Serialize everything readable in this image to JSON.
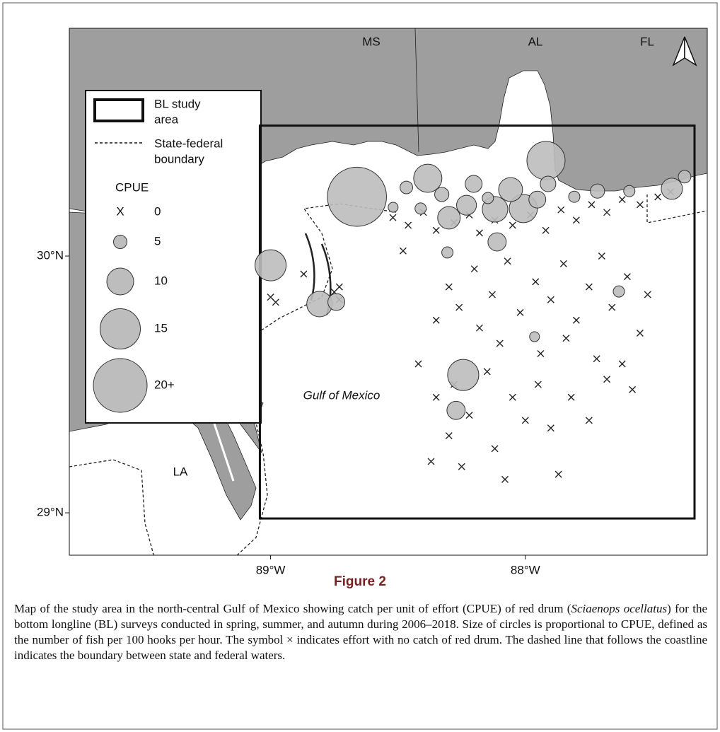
{
  "map_data": {
    "type": "bubble-map",
    "xlim": [
      -89.79,
      -87.286
    ],
    "ylim": [
      28.835,
      30.887
    ],
    "xticks": [
      {
        "value": -89,
        "label": "89°W"
      },
      {
        "value": -88,
        "label": "88°W"
      }
    ],
    "yticks": [
      {
        "value": 29,
        "label": "29°N"
      },
      {
        "value": 30,
        "label": "30°N"
      }
    ],
    "study_area": {
      "lon": [
        -89.042,
        -87.336
      ],
      "lat": [
        28.978,
        30.508
      ]
    },
    "catch": {
      "lon": [
        -88.661,
        -87.919,
        -89.0,
        -88.244,
        -88.383,
        -88.008,
        -88.808,
        -88.119,
        -88.058,
        -88.3,
        -87.425,
        -88.231,
        -88.111,
        -88.272,
        -88.742,
        -88.203,
        -87.953,
        -88.328,
        -87.911,
        -87.717,
        -88.467,
        -87.375,
        -88.411,
        -87.592,
        -87.633,
        -88.306,
        -88.147,
        -87.808,
        -87.964,
        -88.519
      ],
      "lat": [
        30.231,
        30.372,
        29.964,
        29.537,
        30.303,
        30.185,
        29.813,
        30.182,
        30.259,
        30.149,
        30.262,
        30.198,
        30.055,
        29.399,
        29.821,
        30.281,
        30.22,
        30.24,
        30.281,
        30.253,
        30.267,
        30.309,
        30.185,
        30.253,
        29.862,
        30.014,
        30.226,
        30.231,
        29.686,
        30.19
      ],
      "cpue": [
        22,
        14.2,
        11.6,
        11.6,
        10.5,
        10.5,
        9.5,
        9.5,
        8.9,
        8.4,
        7.9,
        7.4,
        6.8,
        6.8,
        6.3,
        6.3,
        6.3,
        5.3,
        5.8,
        5.3,
        4.7,
        4.7,
        4.2,
        4.2,
        4.2,
        4.2,
        4.2,
        4.2,
        3.7,
        3.7
      ]
    },
    "no_catch": {
      "lon": [
        -88.52,
        -88.46,
        -88.4,
        -88.35,
        -88.28,
        -88.22,
        -88.18,
        -88.12,
        -88.05,
        -87.98,
        -87.92,
        -87.86,
        -87.8,
        -87.74,
        -87.68,
        -87.62,
        -87.55,
        -87.48,
        -87.43,
        -88.48,
        -88.3,
        -88.26,
        -88.2,
        -88.13,
        -88.07,
        -88.02,
        -87.96,
        -87.9,
        -87.85,
        -87.8,
        -87.75,
        -87.7,
        -87.66,
        -87.6,
        -87.55,
        -87.52,
        -88.35,
        -88.18,
        -88.1,
        -87.94,
        -87.84,
        -87.72,
        -87.62,
        -88.42,
        -88.35,
        -88.3,
        -88.28,
        -88.22,
        -88.15,
        -88.12,
        -88.05,
        -88.0,
        -87.95,
        -87.9,
        -87.82,
        -87.75,
        -87.68,
        -87.58,
        -88.37,
        -88.25,
        -88.08,
        -87.87,
        -89.0,
        -88.98,
        -88.87,
        -88.75,
        -88.73,
        -88.73
      ],
      "lat": [
        30.15,
        30.12,
        30.17,
        30.1,
        30.13,
        30.16,
        30.09,
        30.14,
        30.12,
        30.16,
        30.1,
        30.18,
        30.14,
        30.2,
        30.17,
        30.22,
        30.2,
        30.23,
        30.25,
        30.02,
        29.88,
        29.8,
        29.95,
        29.85,
        29.98,
        29.78,
        29.9,
        29.83,
        29.97,
        29.75,
        29.88,
        30.0,
        29.8,
        29.92,
        29.7,
        29.85,
        29.75,
        29.72,
        29.66,
        29.62,
        29.68,
        29.6,
        29.58,
        29.58,
        29.45,
        29.3,
        29.5,
        29.38,
        29.55,
        29.25,
        29.45,
        29.36,
        29.5,
        29.33,
        29.45,
        29.36,
        29.52,
        29.48,
        29.2,
        29.18,
        29.13,
        29.15,
        29.84,
        29.82,
        29.93,
        29.86,
        29.83,
        29.88
      ]
    },
    "place_labels": [
      "MS",
      "AL",
      "FL",
      "LA",
      "Gulf of Mexico"
    ],
    "legend": {
      "study_area": [
        "BL study",
        "area"
      ],
      "boundary": [
        "State-federal",
        "boundary"
      ],
      "title": "CPUE",
      "zero_symbol": "X",
      "sizes": [
        0,
        5,
        10,
        15,
        {
          "value": 20,
          "label": "20+"
        }
      ]
    }
  },
  "figure": {
    "label": "Figure 2",
    "caption": [
      "Map of the study area in the north-central Gulf of Mexico showing catch per unit of effort (CPUE) of red drum (",
      "Sciaenops ocellatus",
      ") for the bottom longline (BL) surveys conducted in spring, summer, and autumn during 2006–2018. Size of circles is proportional to CPUE, defined as the number of fish per 100 hooks per hour. The symbol × indicates effort with no catch of red drum. The dashed line that follows the coastline indicates the boundary between state and federal waters."
    ]
  }
}
